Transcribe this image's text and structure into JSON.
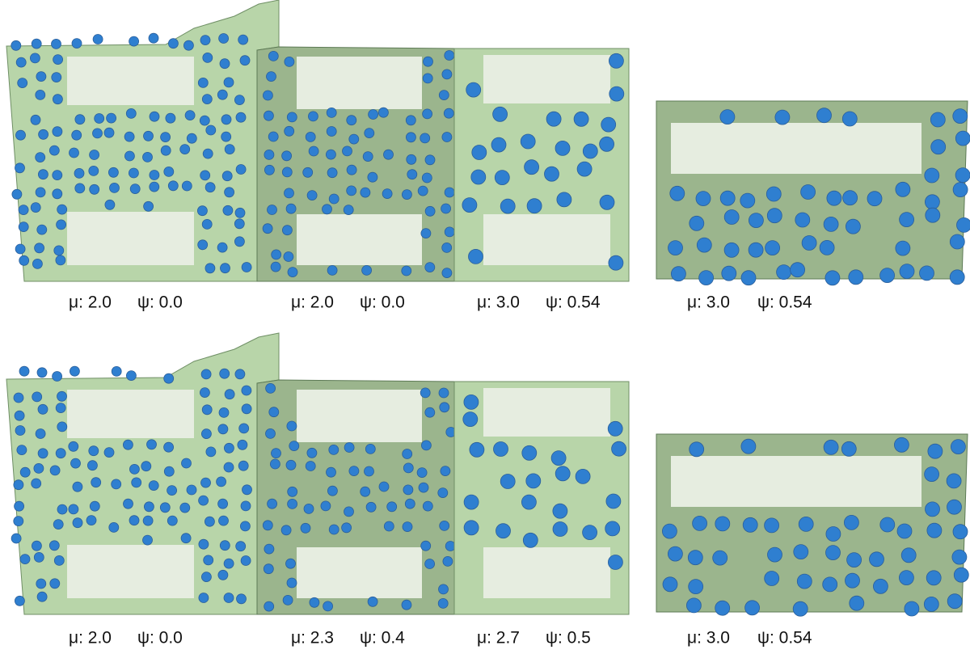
{
  "rows": [
    {
      "panels": [
        {
          "mu": "μ: 2.0",
          "psi": "ψ: 0.0"
        },
        {
          "mu": "μ: 2.0",
          "psi": "ψ: 0.0"
        },
        {
          "mu": "μ: 3.0",
          "psi": "ψ: 0.54"
        },
        {
          "mu": "μ: 3.0",
          "psi": "ψ: 0.54"
        }
      ]
    },
    {
      "panels": [
        {
          "mu": "μ: 2.0",
          "psi": "ψ: 0.0"
        },
        {
          "mu": "μ: 2.3",
          "psi": "ψ: 0.4"
        },
        {
          "mu": "μ: 2.7",
          "psi": "ψ: 0.5"
        },
        {
          "mu": "μ: 3.0",
          "psi": "ψ: 0.54"
        }
      ]
    }
  ]
}
